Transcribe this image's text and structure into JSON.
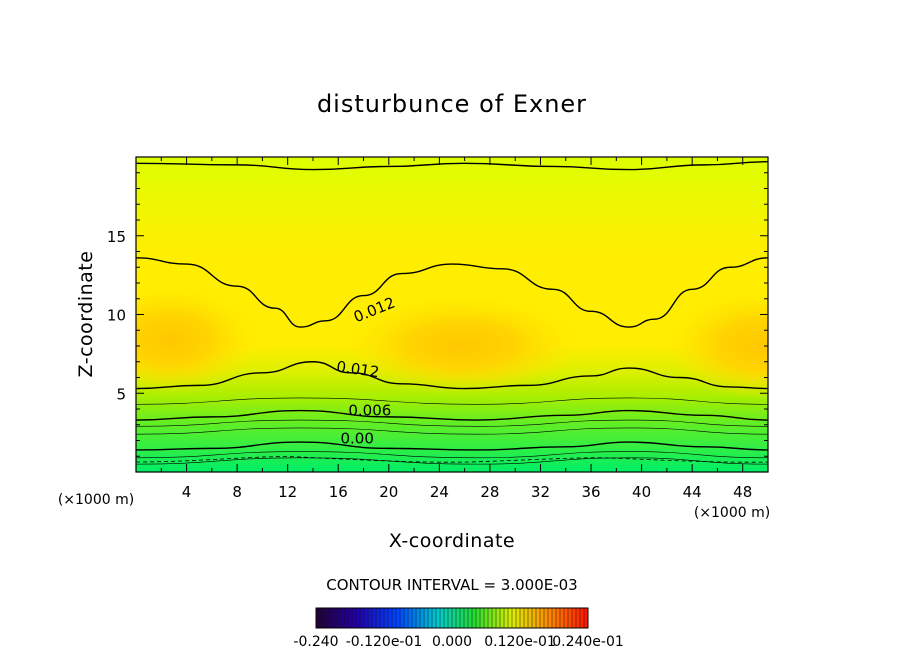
{
  "chart_data": {
    "type": "contour",
    "title": "disturbunce of Exner",
    "xlabel": "X-coordinate",
    "ylabel": "Z-coordinate",
    "x_unit": "(×1000 m)",
    "y_unit": "(×1000 m)",
    "xlim": [
      0,
      50
    ],
    "ylim": [
      0,
      20
    ],
    "x_ticks": [
      "4",
      "8",
      "12",
      "16",
      "20",
      "24",
      "28",
      "32",
      "36",
      "40",
      "44",
      "48"
    ],
    "y_ticks": [
      "5",
      "10",
      "15"
    ],
    "contour_interval_text": "CONTOUR INTERVAL = 3.000E-03",
    "colorbar_labels": [
      "-0.240",
      "-0.120e-01",
      "0.000",
      "0.120e-01",
      "0.240e-01"
    ],
    "contour_labels": [
      {
        "text": "0.012",
        "x": 19.0,
        "z": 10.0
      },
      {
        "text": "0.012",
        "x": 17.5,
        "z": 6.2
      },
      {
        "text": "0.006",
        "x": 18.5,
        "z": 3.6
      },
      {
        "text": "0.00",
        "x": 17.5,
        "z": 1.8
      }
    ],
    "contours": [
      {
        "value": 0.0,
        "points": [
          [
            0,
            1.4
          ],
          [
            6,
            1.5
          ],
          [
            13,
            1.9
          ],
          [
            20,
            1.5
          ],
          [
            27,
            1.4
          ],
          [
            34,
            1.6
          ],
          [
            39,
            1.9
          ],
          [
            45,
            1.6
          ],
          [
            50,
            1.4
          ]
        ]
      },
      {
        "value": 0.006,
        "points": [
          [
            0,
            3.3
          ],
          [
            6,
            3.5
          ],
          [
            13,
            3.9
          ],
          [
            20,
            3.5
          ],
          [
            27,
            3.3
          ],
          [
            34,
            3.6
          ],
          [
            39,
            3.9
          ],
          [
            45,
            3.6
          ],
          [
            50,
            3.3
          ]
        ]
      },
      {
        "value": 0.012,
        "points": [
          [
            0,
            5.3
          ],
          [
            5,
            5.5
          ],
          [
            10,
            6.3
          ],
          [
            14,
            7.0
          ],
          [
            17,
            6.3
          ],
          [
            21,
            5.6
          ],
          [
            26,
            5.3
          ],
          [
            31,
            5.5
          ],
          [
            36,
            6.1
          ],
          [
            39,
            6.6
          ],
          [
            43,
            6.0
          ],
          [
            47,
            5.4
          ],
          [
            50,
            5.3
          ]
        ]
      },
      {
        "value": 0.012,
        "points": [
          [
            0,
            13.6
          ],
          [
            4,
            13.2
          ],
          [
            8,
            11.8
          ],
          [
            11,
            10.4
          ],
          [
            13,
            9.2
          ],
          [
            15,
            9.6
          ],
          [
            18,
            11.2
          ],
          [
            21,
            12.6
          ],
          [
            25,
            13.2
          ],
          [
            29,
            12.9
          ],
          [
            33,
            11.6
          ],
          [
            36,
            10.2
          ],
          [
            39,
            9.2
          ],
          [
            41,
            9.7
          ],
          [
            44,
            11.6
          ],
          [
            47,
            13.0
          ],
          [
            50,
            13.6
          ]
        ]
      },
      {
        "value": 0.006,
        "points": [
          [
            0,
            19.6
          ],
          [
            8,
            19.5
          ],
          [
            14,
            19.2
          ],
          [
            20,
            19.4
          ],
          [
            26,
            19.6
          ],
          [
            33,
            19.4
          ],
          [
            39,
            19.2
          ],
          [
            45,
            19.5
          ],
          [
            50,
            19.7
          ]
        ]
      }
    ],
    "colors": {
      "bottom": "#00ee66",
      "low": "#55ee33",
      "mid": "#ccee00",
      "upper": "#ddff00",
      "core": "#ffdd00",
      "max": "#ffcc00"
    }
  }
}
